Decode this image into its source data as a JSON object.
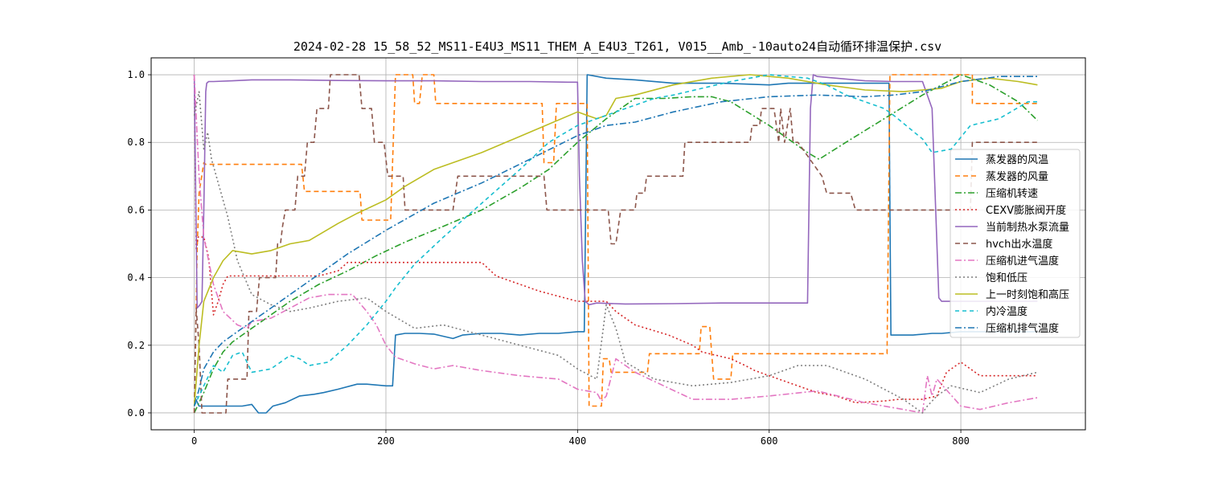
{
  "chart_data": {
    "type": "line",
    "title": "2024-02-28 15_58_52_MS11-E4U3_MS11_THEM_A_E4U3_T261, V015__Amb_-10auto24自动循环排温保护.csv",
    "xlabel": "",
    "ylabel": "",
    "xlim": [
      -45,
      930
    ],
    "ylim": [
      -0.05,
      1.05
    ],
    "xticks": [
      0,
      200,
      400,
      600,
      800
    ],
    "yticks": [
      0.0,
      0.2,
      0.4,
      0.6,
      0.8,
      1.0
    ],
    "xtick_labels": [
      "0",
      "200",
      "400",
      "600",
      "800"
    ],
    "ytick_labels": [
      "0.0",
      "0.2",
      "0.4",
      "0.6",
      "0.8",
      "1.0"
    ],
    "grid": true,
    "legend_position": "center-right",
    "series": [
      {
        "name": "蒸发器的风温",
        "color": "#1f77b4",
        "dash": "solid",
        "x": [
          0,
          5,
          10,
          20,
          30,
          40,
          50,
          60,
          67,
          75,
          82,
          95,
          110,
          125,
          135,
          150,
          170,
          180,
          200,
          207,
          210,
          220,
          235,
          250,
          270,
          280,
          300,
          320,
          340,
          360,
          380,
          400,
          407,
          410,
          430,
          460,
          500,
          550,
          600,
          620,
          660,
          700,
          725,
          727,
          730,
          750,
          770,
          780,
          800,
          830,
          860,
          880
        ],
        "y": [
          0.05,
          0.02,
          0.02,
          0.02,
          0.02,
          0.02,
          0.02,
          0.025,
          0.0,
          0.0,
          0.02,
          0.03,
          0.05,
          0.055,
          0.06,
          0.07,
          0.085,
          0.085,
          0.08,
          0.08,
          0.23,
          0.235,
          0.235,
          0.233,
          0.22,
          0.23,
          0.235,
          0.235,
          0.23,
          0.235,
          0.235,
          0.24,
          0.24,
          1.0,
          0.99,
          0.985,
          0.975,
          0.975,
          0.97,
          0.975,
          0.975,
          0.975,
          0.975,
          0.23,
          0.23,
          0.23,
          0.235,
          0.235,
          0.24,
          0.24,
          0.24,
          0.24
        ]
      },
      {
        "name": "蒸发器的风量",
        "color": "#ff7f0e",
        "dash": "6,4",
        "x": [
          0,
          3,
          5,
          10,
          12,
          112,
          115,
          173,
          175,
          205,
          210,
          212,
          228,
          230,
          235,
          238,
          250,
          252,
          270,
          272,
          363,
          365,
          375,
          378,
          410,
          412,
          425,
          427,
          433,
          435,
          450,
          453,
          473,
          475,
          527,
          529,
          538,
          540,
          540,
          542,
          560,
          562,
          647,
          649,
          705,
          706,
          723,
          726,
          728,
          810,
          812,
          812,
          814,
          870,
          880
        ],
        "y": [
          0.0,
          0.48,
          0.65,
          0.74,
          0.735,
          0.735,
          0.655,
          0.655,
          0.57,
          0.57,
          1.0,
          1.0,
          1.0,
          0.915,
          0.915,
          1.0,
          1.0,
          0.915,
          0.915,
          0.915,
          0.915,
          0.74,
          0.74,
          0.915,
          0.915,
          0.02,
          0.02,
          0.16,
          0.16,
          0.12,
          0.12,
          0.12,
          0.12,
          0.175,
          0.175,
          0.255,
          0.255,
          0.175,
          0.175,
          0.1,
          0.1,
          0.175,
          0.175,
          0.175,
          0.175,
          0.175,
          0.175,
          1.0,
          1.0,
          1.0,
          1.0,
          0.915,
          0.915,
          0.915,
          0.915
        ]
      },
      {
        "name": "压缩机转速",
        "color": "#2ca02c",
        "dash": "8,3,2,3",
        "x": [
          0,
          10,
          20,
          30,
          40,
          60,
          80,
          100,
          130,
          160,
          190,
          220,
          250,
          300,
          340,
          370,
          400,
          430,
          460,
          490,
          520,
          540,
          560,
          600,
          640,
          652,
          680,
          720,
          760,
          800,
          830,
          860,
          880
        ],
        "y": [
          0.0,
          0.06,
          0.13,
          0.18,
          0.21,
          0.25,
          0.29,
          0.33,
          0.38,
          0.42,
          0.465,
          0.505,
          0.54,
          0.6,
          0.665,
          0.72,
          0.8,
          0.87,
          0.93,
          0.93,
          0.935,
          0.935,
          0.92,
          0.85,
          0.77,
          0.75,
          0.8,
          0.87,
          0.94,
          1.0,
          0.97,
          0.92,
          0.865
        ]
      },
      {
        "name": "CEXV膨胀阀开度",
        "color": "#d62728",
        "dash": "2,3",
        "x": [
          0,
          2,
          4,
          10,
          15,
          20,
          25,
          30,
          35,
          50,
          70,
          100,
          130,
          150,
          160,
          250,
          300,
          315,
          360,
          400,
          415,
          430,
          440,
          460,
          495,
          520,
          530,
          545,
          560,
          575,
          585,
          600,
          620,
          635,
          650,
          670,
          680,
          690,
          720,
          735,
          760,
          775,
          785,
          800,
          820,
          850,
          880
        ],
        "y": [
          1.0,
          0.48,
          0.52,
          0.52,
          0.46,
          0.29,
          0.33,
          0.38,
          0.405,
          0.405,
          0.405,
          0.405,
          0.405,
          0.42,
          0.445,
          0.445,
          0.445,
          0.405,
          0.36,
          0.33,
          0.33,
          0.33,
          0.3,
          0.26,
          0.23,
          0.2,
          0.18,
          0.17,
          0.16,
          0.14,
          0.125,
          0.11,
          0.09,
          0.075,
          0.06,
          0.05,
          0.04,
          0.03,
          0.035,
          0.04,
          0.04,
          0.05,
          0.12,
          0.15,
          0.11,
          0.11,
          0.11
        ]
      },
      {
        "name": "当前制热水泵流量",
        "color": "#9467bd",
        "dash": "solid",
        "x": [
          0,
          3,
          6,
          8,
          10,
          12,
          13,
          15,
          20,
          40,
          60,
          80,
          100,
          150,
          200,
          250,
          300,
          350,
          390,
          400,
          402,
          405,
          408,
          412,
          420,
          450,
          500,
          550,
          600,
          620,
          640,
          643,
          646,
          650,
          700,
          730,
          760,
          770,
          777,
          780,
          800,
          840,
          880
        ],
        "y": [
          1.0,
          0.31,
          0.32,
          0.33,
          0.6,
          0.95,
          0.975,
          0.98,
          0.98,
          0.982,
          0.985,
          0.985,
          0.985,
          0.983,
          0.982,
          0.982,
          0.98,
          0.98,
          0.978,
          0.978,
          0.7,
          0.45,
          0.33,
          0.32,
          0.325,
          0.322,
          0.323,
          0.325,
          0.325,
          0.325,
          0.325,
          0.9,
          1.0,
          0.995,
          0.982,
          0.98,
          0.98,
          0.9,
          0.34,
          0.33,
          0.33,
          0.33,
          0.33
        ]
      },
      {
        "name": "hvch出水温度",
        "color": "#8c564b",
        "dash": "6,4",
        "x": [
          0,
          2,
          5,
          8,
          20,
          33,
          35,
          55,
          57,
          65,
          68,
          85,
          87,
          90,
          92,
          95,
          105,
          108,
          115,
          118,
          125,
          128,
          140,
          142,
          145,
          150,
          172,
          175,
          185,
          188,
          198,
          202,
          218,
          220,
          270,
          275,
          365,
          368,
          410,
          412,
          432,
          435,
          440,
          445,
          460,
          462,
          470,
          472,
          510,
          512,
          580,
          582,
          590,
          592,
          605,
          610,
          612,
          616,
          622,
          625,
          630,
          655,
          660,
          685,
          690,
          727,
          810,
          812,
          880
        ],
        "y": [
          0.0,
          0.31,
          0.2,
          0.0,
          0.0,
          0.0,
          0.1,
          0.1,
          0.3,
          0.3,
          0.4,
          0.4,
          0.5,
          0.5,
          0.55,
          0.6,
          0.6,
          0.7,
          0.7,
          0.8,
          0.8,
          0.9,
          0.9,
          1.0,
          1.0,
          1.0,
          1.0,
          0.9,
          0.9,
          0.8,
          0.8,
          0.7,
          0.7,
          0.6,
          0.6,
          0.7,
          0.7,
          0.6,
          0.6,
          0.6,
          0.6,
          0.5,
          0.5,
          0.6,
          0.6,
          0.65,
          0.65,
          0.7,
          0.7,
          0.8,
          0.8,
          0.85,
          0.85,
          0.9,
          0.9,
          0.8,
          0.9,
          0.8,
          0.9,
          0.8,
          0.8,
          0.7,
          0.65,
          0.65,
          0.6,
          0.6,
          0.6,
          0.8,
          0.8
        ]
      },
      {
        "name": "压缩机进气温度",
        "color": "#e377c2",
        "dash": "8,3,2,3",
        "x": [
          0,
          5,
          10,
          15,
          20,
          30,
          45,
          55,
          60,
          80,
          100,
          120,
          140,
          160,
          165,
          180,
          190,
          200,
          210,
          230,
          250,
          270,
          300,
          340,
          380,
          400,
          420,
          425,
          430,
          440,
          460,
          490,
          520,
          560,
          600,
          650,
          700,
          740,
          760,
          765,
          770,
          775,
          800,
          820,
          850,
          880
        ],
        "y": [
          1.0,
          0.7,
          0.52,
          0.45,
          0.38,
          0.3,
          0.26,
          0.25,
          0.27,
          0.28,
          0.31,
          0.34,
          0.35,
          0.35,
          0.35,
          0.3,
          0.26,
          0.2,
          0.165,
          0.145,
          0.13,
          0.14,
          0.125,
          0.11,
          0.1,
          0.07,
          0.06,
          0.035,
          0.05,
          0.16,
          0.12,
          0.08,
          0.04,
          0.04,
          0.05,
          0.065,
          0.03,
          0.01,
          0.0,
          0.11,
          0.05,
          0.1,
          0.02,
          0.01,
          0.03,
          0.045
        ]
      },
      {
        "name": "饱和低压",
        "color": "#7f7f7f",
        "dash": "2,3",
        "x": [
          0,
          5,
          10,
          14,
          18,
          25,
          35,
          45,
          60,
          80,
          100,
          120,
          150,
          180,
          200,
          230,
          260,
          300,
          340,
          380,
          400,
          420,
          430,
          440,
          450,
          480,
          520,
          560,
          600,
          630,
          660,
          700,
          740,
          760,
          765,
          775,
          790,
          820,
          850,
          880
        ],
        "y": [
          0.88,
          0.95,
          0.78,
          0.83,
          0.75,
          0.68,
          0.58,
          0.45,
          0.35,
          0.32,
          0.3,
          0.31,
          0.33,
          0.34,
          0.3,
          0.25,
          0.26,
          0.23,
          0.2,
          0.17,
          0.13,
          0.1,
          0.32,
          0.25,
          0.15,
          0.1,
          0.08,
          0.09,
          0.11,
          0.14,
          0.14,
          0.1,
          0.04,
          0.0,
          0.02,
          0.05,
          0.08,
          0.06,
          0.1,
          0.12
        ]
      },
      {
        "name": "上一时刻饱和高压",
        "color": "#bcbd22",
        "dash": "solid",
        "x": [
          0,
          5,
          10,
          20,
          30,
          40,
          60,
          80,
          100,
          120,
          150,
          170,
          200,
          220,
          250,
          300,
          350,
          400,
          410,
          420,
          430,
          440,
          460,
          500,
          540,
          580,
          620,
          660,
          700,
          740,
          780,
          800,
          830,
          860,
          880
        ],
        "y": [
          0.02,
          0.2,
          0.33,
          0.4,
          0.45,
          0.48,
          0.47,
          0.48,
          0.5,
          0.51,
          0.56,
          0.59,
          0.63,
          0.67,
          0.72,
          0.77,
          0.83,
          0.89,
          0.88,
          0.87,
          0.88,
          0.93,
          0.94,
          0.97,
          0.99,
          1.0,
          0.99,
          0.97,
          0.955,
          0.95,
          0.96,
          0.98,
          0.99,
          0.98,
          0.97
        ]
      },
      {
        "name": "内冷温度",
        "color": "#17becf",
        "dash": "5,4",
        "x": [
          0,
          10,
          20,
          30,
          40,
          50,
          60,
          80,
          100,
          110,
          120,
          140,
          160,
          180,
          200,
          210,
          230,
          260,
          300,
          340,
          370,
          400,
          420,
          430,
          440,
          460,
          480,
          500,
          530,
          560,
          600,
          620,
          640,
          660,
          680,
          700,
          720,
          730,
          760,
          770,
          790,
          810,
          840,
          870,
          880
        ],
        "y": [
          0.02,
          0.08,
          0.14,
          0.12,
          0.17,
          0.18,
          0.12,
          0.13,
          0.17,
          0.16,
          0.14,
          0.15,
          0.2,
          0.26,
          0.33,
          0.37,
          0.44,
          0.52,
          0.62,
          0.72,
          0.8,
          0.85,
          0.87,
          0.88,
          0.89,
          0.91,
          0.93,
          0.94,
          0.96,
          0.98,
          1.0,
          0.995,
          0.99,
          0.97,
          0.94,
          0.92,
          0.9,
          0.88,
          0.81,
          0.77,
          0.78,
          0.85,
          0.87,
          0.92,
          0.92
        ]
      },
      {
        "name": "压缩机排气温度",
        "color": "#1f77b4",
        "dash": "8,3,2,3",
        "x": [
          0,
          5,
          10,
          20,
          30,
          40,
          60,
          80,
          100,
          130,
          160,
          200,
          250,
          300,
          350,
          400,
          430,
          460,
          500,
          550,
          600,
          650,
          700,
          730,
          760,
          800,
          840,
          880
        ],
        "y": [
          0.02,
          0.07,
          0.13,
          0.18,
          0.21,
          0.23,
          0.27,
          0.31,
          0.35,
          0.41,
          0.47,
          0.54,
          0.62,
          0.68,
          0.75,
          0.82,
          0.85,
          0.86,
          0.89,
          0.92,
          0.935,
          0.94,
          0.935,
          0.94,
          0.95,
          0.98,
          0.995,
          0.995
        ]
      }
    ]
  }
}
